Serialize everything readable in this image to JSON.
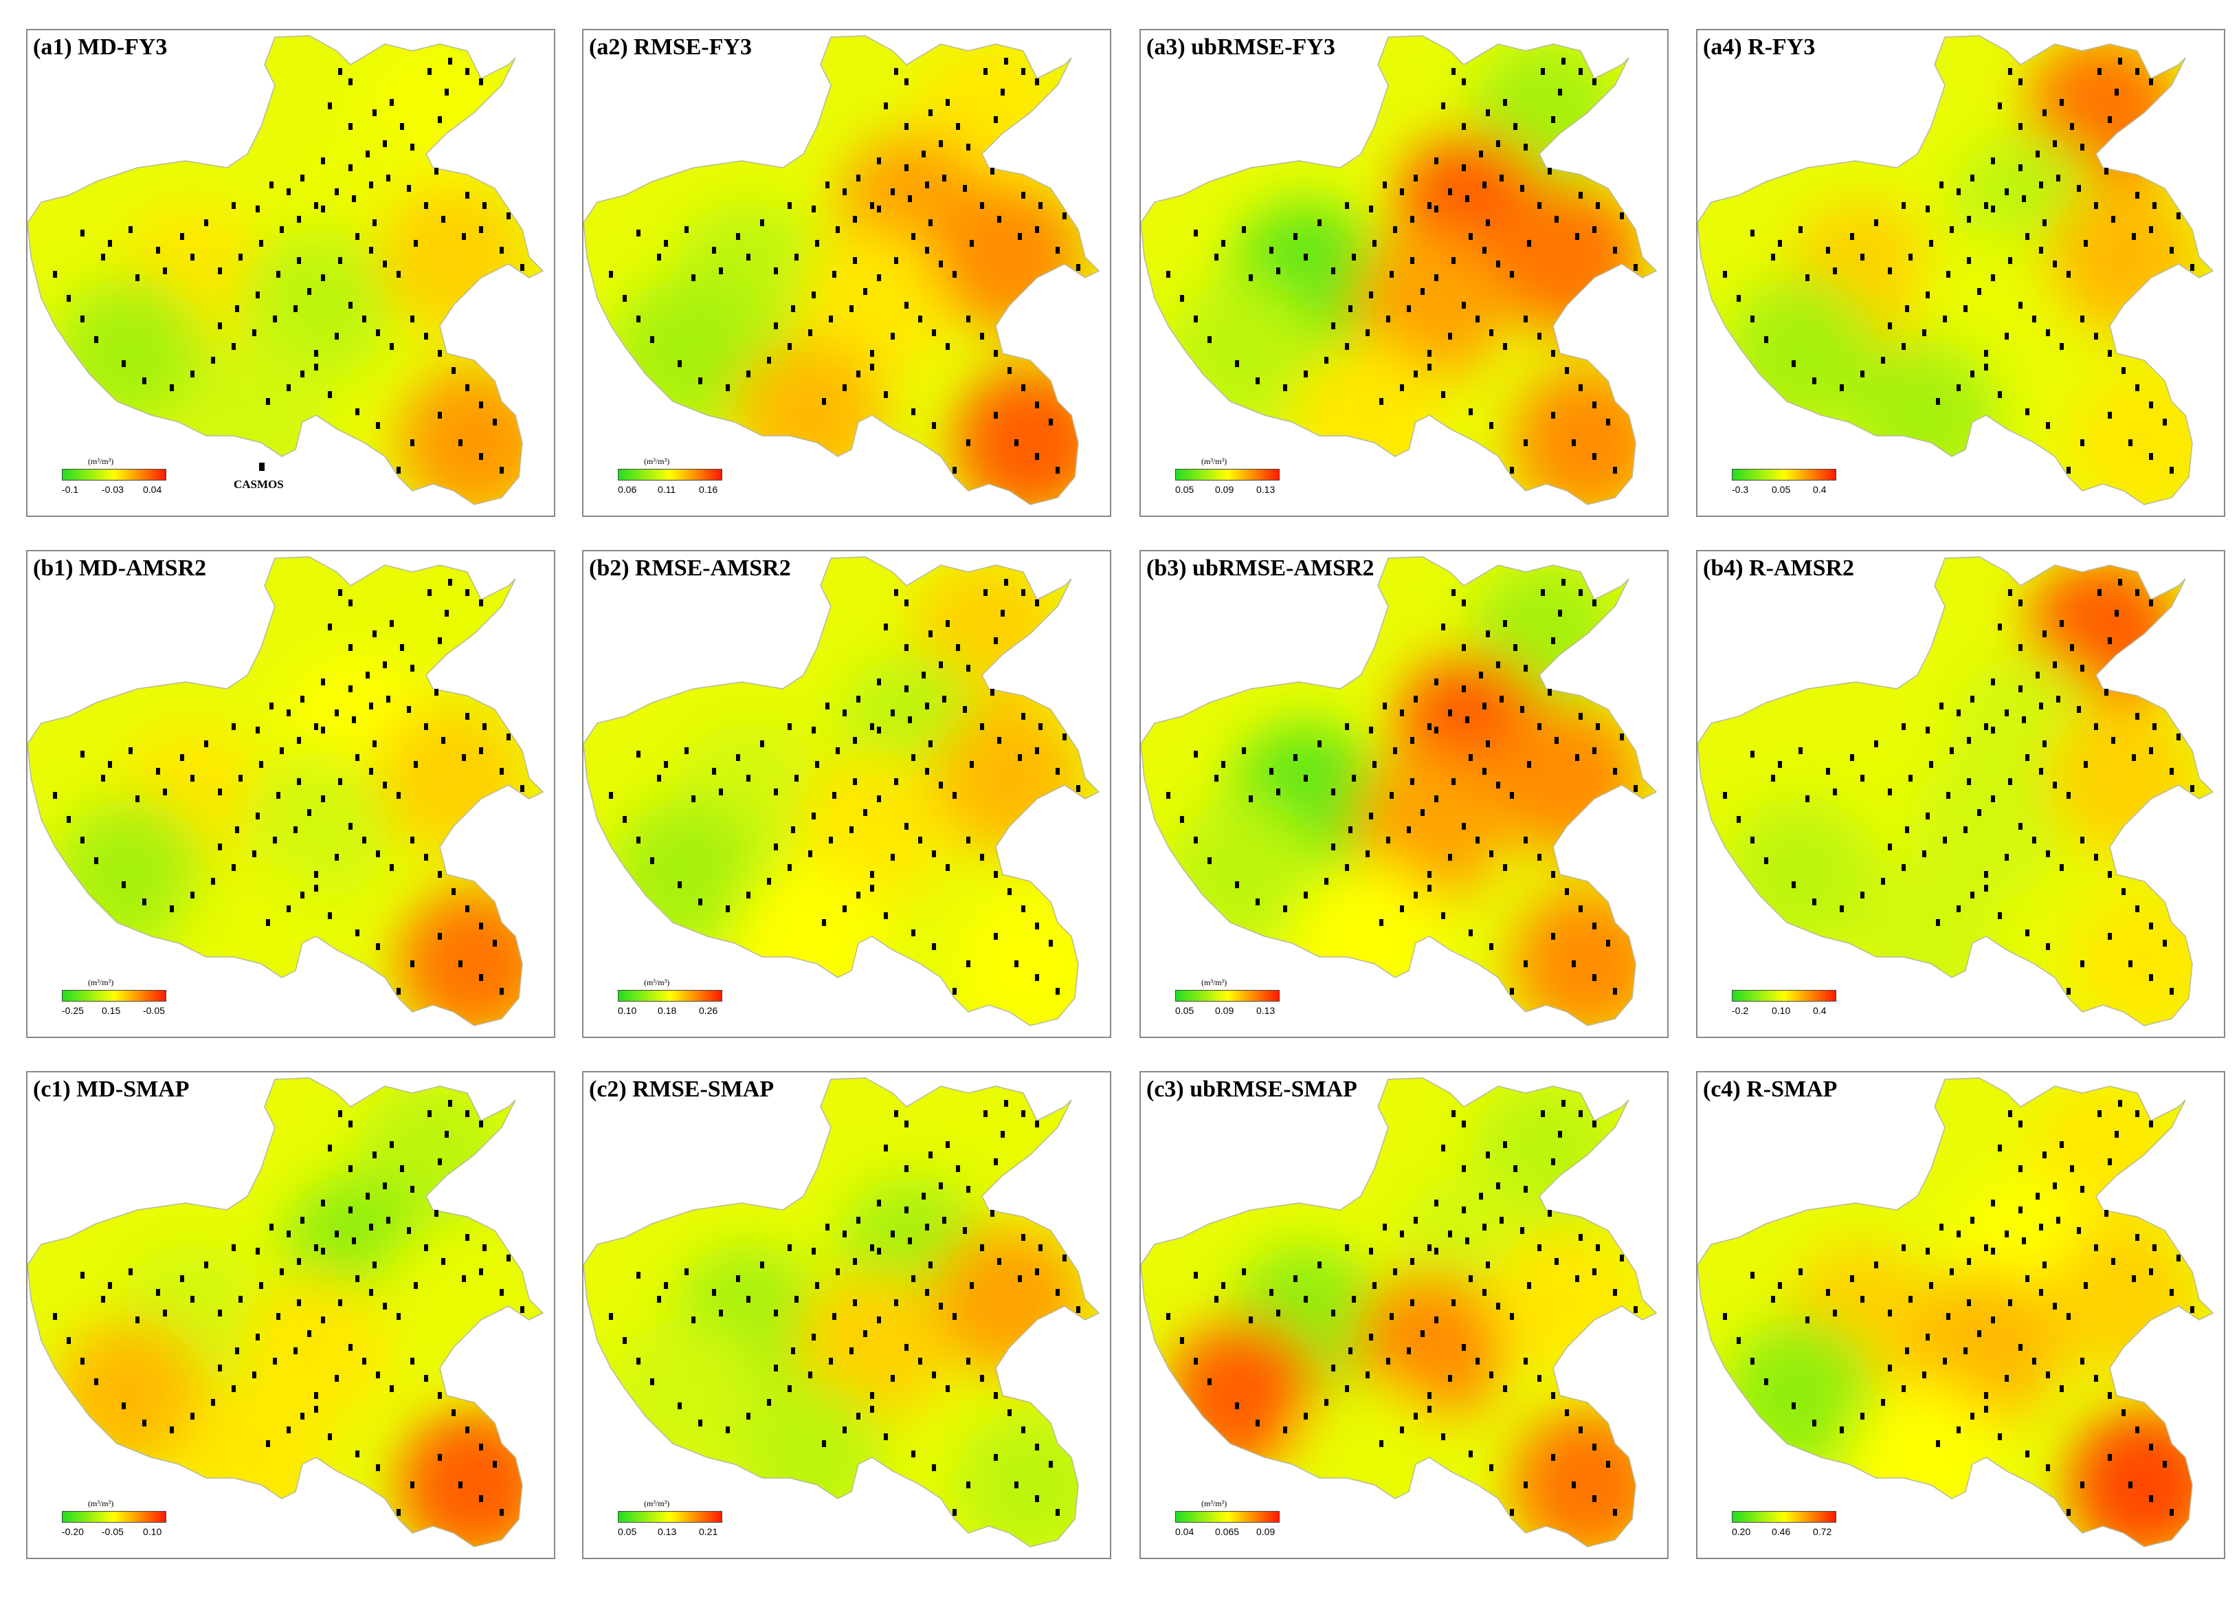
{
  "colors": {
    "low": "#22dd22",
    "mid": "#ffff00",
    "high": "#ff1a00",
    "marker": "#000000"
  },
  "legend": {
    "marker_label": "CASMOS"
  },
  "panels": [
    {
      "title": "(a1) MD-FY3",
      "unit": "(m³/m³)",
      "ticks": [
        "-0.1",
        "-0.03",
        "0.04"
      ],
      "hot": [
        0.55,
        0.48,
        0.46,
        0.72,
        0.3,
        0.35,
        0.6,
        0.4
      ],
      "show_legend": true
    },
    {
      "title": "(a2) RMSE-FY3",
      "unit": "(m³/m³)",
      "ticks": [
        "0.06",
        "0.11",
        "0.16"
      ],
      "hot": [
        0.35,
        0.55,
        0.7,
        0.85,
        0.3,
        0.55,
        0.75,
        0.65
      ],
      "show_legend": false
    },
    {
      "title": "(a3) ubRMSE-FY3",
      "unit": "(m³/m³)",
      "ticks": [
        "0.05",
        "0.09",
        "0.13"
      ],
      "hot": [
        0.15,
        0.3,
        0.85,
        0.75,
        0.35,
        0.7,
        0.8,
        0.55
      ],
      "show_legend": false
    },
    {
      "title": "(a4) R-FY3",
      "unit": "",
      "ticks": [
        "-0.3",
        "0.05",
        "0.4"
      ],
      "hot": [
        0.6,
        0.8,
        0.35,
        0.55,
        0.3,
        0.45,
        0.65,
        0.3
      ],
      "show_legend": false
    },
    {
      "title": "(b1) MD-AMSR2",
      "unit": "(m³/m³)",
      "ticks": [
        "-0.25",
        "0.15",
        "-0.05"
      ],
      "hot": [
        0.55,
        0.45,
        0.5,
        0.8,
        0.3,
        0.4,
        0.6,
        0.45
      ],
      "show_legend": false
    },
    {
      "title": "(b2) RMSE-AMSR2",
      "unit": "(m³/m³)",
      "ticks": [
        "0.10",
        "0.18",
        "0.26"
      ],
      "hot": [
        0.4,
        0.6,
        0.35,
        0.5,
        0.3,
        0.55,
        0.65,
        0.5
      ],
      "show_legend": false
    },
    {
      "title": "(b3) ubRMSE-AMSR2",
      "unit": "(m³/m³)",
      "ticks": [
        "0.05",
        "0.09",
        "0.13"
      ],
      "hot": [
        0.15,
        0.3,
        0.85,
        0.75,
        0.35,
        0.7,
        0.75,
        0.5
      ],
      "show_legend": false
    },
    {
      "title": "(b4) R-AMSR2",
      "unit": "",
      "ticks": [
        "-0.2",
        "0.10",
        "0.4"
      ],
      "hot": [
        0.45,
        0.85,
        0.4,
        0.55,
        0.35,
        0.4,
        0.6,
        0.4
      ],
      "show_legend": false
    },
    {
      "title": "(c1) MD-SMAP",
      "unit": "(m³/m³)",
      "ticks": [
        "-0.20",
        "-0.05",
        "0.10"
      ],
      "hot": [
        0.4,
        0.35,
        0.25,
        0.85,
        0.65,
        0.55,
        0.45,
        0.55
      ],
      "show_legend": false
    },
    {
      "title": "(c2) RMSE-SMAP",
      "unit": "(m³/m³)",
      "ticks": [
        "0.05",
        "0.13",
        "0.21"
      ],
      "hot": [
        0.3,
        0.45,
        0.3,
        0.35,
        0.4,
        0.6,
        0.7,
        0.35
      ],
      "show_legend": false
    },
    {
      "title": "(c3) ubRMSE-SMAP",
      "unit": "(m³/m³)",
      "ticks": [
        "0.04",
        "0.065",
        "0.09"
      ],
      "hot": [
        0.25,
        0.35,
        0.4,
        0.8,
        0.85,
        0.75,
        0.55,
        0.45
      ],
      "show_legend": false
    },
    {
      "title": "(c4) R-SMAP",
      "unit": "",
      "ticks": [
        "0.20",
        "0.46",
        "0.72"
      ],
      "hot": [
        0.6,
        0.55,
        0.5,
        0.9,
        0.25,
        0.65,
        0.6,
        0.5
      ],
      "show_legend": false
    }
  ]
}
